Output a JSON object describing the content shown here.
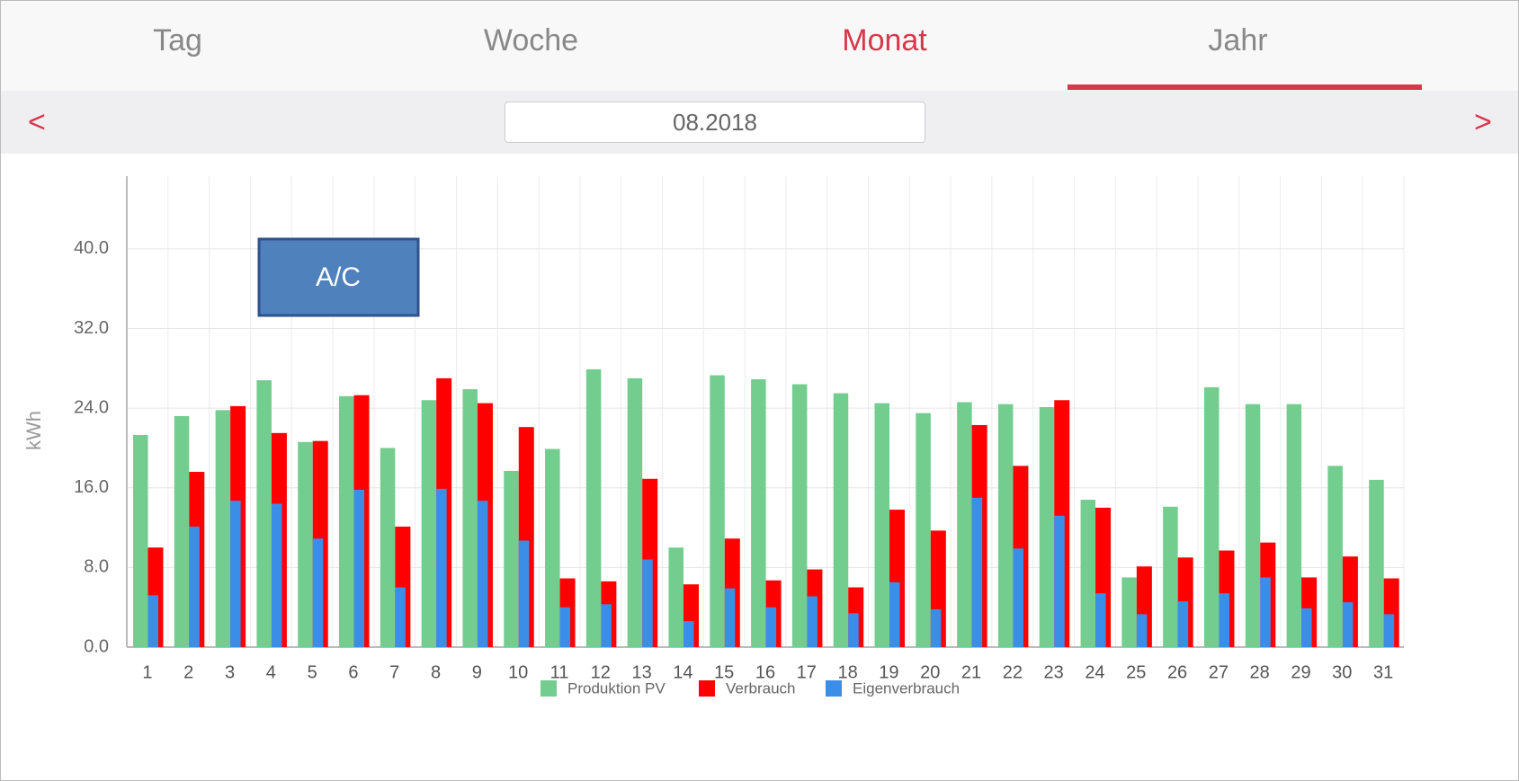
{
  "tabs": [
    "Tag",
    "Woche",
    "Monat",
    "Jahr"
  ],
  "active_tab": 2,
  "nav": {
    "prev": "<",
    "next": ">",
    "date": "08.2018"
  },
  "chart_data": {
    "type": "bar",
    "ylabel": "kWh",
    "annotation": "A/C",
    "categories": [
      "1",
      "2",
      "3",
      "4",
      "5",
      "6",
      "7",
      "8",
      "9",
      "10",
      "11",
      "12",
      "13",
      "14",
      "15",
      "16",
      "17",
      "18",
      "19",
      "20",
      "21",
      "22",
      "23",
      "24",
      "25",
      "26",
      "27",
      "28",
      "29",
      "30",
      "31"
    ],
    "series": [
      {
        "name": "Produktion PV",
        "color": "#72cd8f",
        "values": [
          21.3,
          23.2,
          23.8,
          26.8,
          20.6,
          25.2,
          20.0,
          24.8,
          25.9,
          17.7,
          19.9,
          27.9,
          27.0,
          10.0,
          27.3,
          26.9,
          26.4,
          25.5,
          24.5,
          23.5,
          24.6,
          24.4,
          24.1,
          14.8,
          7.0,
          14.1,
          26.1,
          24.4,
          24.4,
          18.2,
          16.8
        ]
      },
      {
        "name": "Verbrauch",
        "color": "#ff0000",
        "values": [
          10.0,
          17.6,
          24.2,
          21.5,
          20.7,
          25.3,
          12.1,
          27.0,
          24.5,
          22.1,
          6.9,
          6.6,
          16.9,
          6.3,
          10.9,
          6.7,
          7.8,
          6.0,
          13.8,
          11.7,
          22.3,
          18.2,
          24.8,
          14.0,
          8.1,
          9.0,
          9.7,
          10.5,
          7.0,
          9.1,
          6.9
        ]
      },
      {
        "name": "Eigenverbrauch",
        "color": "#3a8ee8",
        "values": [
          5.2,
          12.1,
          14.7,
          14.4,
          10.9,
          15.8,
          6.0,
          15.9,
          14.7,
          10.7,
          4.0,
          4.3,
          8.8,
          2.6,
          5.9,
          4.0,
          5.1,
          3.4,
          6.5,
          3.8,
          15.0,
          9.9,
          13.2,
          5.4,
          3.3,
          4.6,
          5.4,
          7.0,
          3.9,
          4.5,
          3.3
        ]
      }
    ],
    "ylim": [
      0,
      47.3
    ],
    "yticks": [
      {
        "value": 0,
        "label": "0.0"
      },
      {
        "value": 8,
        "label": "8.0"
      },
      {
        "value": 16,
        "label": "16.0"
      },
      {
        "value": 24,
        "label": "24.0"
      },
      {
        "value": 32,
        "label": "32.0"
      },
      {
        "value": 40,
        "label": "40.0"
      }
    ],
    "grid": true
  }
}
